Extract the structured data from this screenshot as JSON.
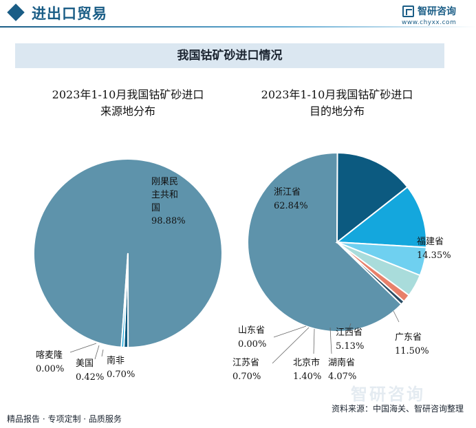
{
  "header": {
    "section_title": "进出口贸易",
    "brand_name": "智研咨询",
    "brand_url": "www.chyxx.com",
    "page_title": "我国钴矿砂进口情况"
  },
  "chart_data": [
    {
      "type": "pie",
      "title": [
        "2023年1-10月我国钴矿砂进口",
        "来源地分布"
      ],
      "unit": "%",
      "slices": [
        {
          "label": [
            "刚果民",
            "主共和",
            "国"
          ],
          "value": 98.88,
          "value_text": "98.88%",
          "color": "#5e93ab"
        },
        {
          "label": [
            "南非"
          ],
          "value": 0.7,
          "value_text": "0.70%",
          "color": "#0c5a80"
        },
        {
          "label": [
            "美国"
          ],
          "value": 0.42,
          "value_text": "0.42%",
          "color": "#14a7dd"
        },
        {
          "label": [
            "喀麦隆"
          ],
          "value": 0.0,
          "value_text": "0.00%",
          "color": "#6fd0f0"
        }
      ]
    },
    {
      "type": "pie",
      "title": [
        "2023年1-10月我国钴矿砂进口",
        "目的地分布"
      ],
      "unit": "%",
      "slices": [
        {
          "label": [
            "浙江省"
          ],
          "value": 62.84,
          "value_text": "62.84%",
          "color": "#5e93ab"
        },
        {
          "label": [
            "福建省"
          ],
          "value": 14.35,
          "value_text": "14.35%",
          "color": "#0c5a80"
        },
        {
          "label": [
            "广东省"
          ],
          "value": 11.5,
          "value_text": "11.50%",
          "color": "#14a7dd"
        },
        {
          "label": [
            "江西省"
          ],
          "value": 5.13,
          "value_text": "5.13%",
          "color": "#6fd0f0"
        },
        {
          "label": [
            "湖南省"
          ],
          "value": 4.07,
          "value_text": "4.07%",
          "color": "#a9dcdb"
        },
        {
          "label": [
            "北京市"
          ],
          "value": 1.4,
          "value_text": "1.40%",
          "color": "#e8806a"
        },
        {
          "label": [
            "江苏省"
          ],
          "value": 0.7,
          "value_text": "0.70%",
          "color": "#2b4e66"
        },
        {
          "label": [
            "山东省"
          ],
          "value": 0.0,
          "value_text": "0.00%",
          "color": "#8fb9d0"
        }
      ]
    }
  ],
  "footer": {
    "left": "精品报告 · 专项定制 · 品质服务",
    "source": "资料来源：中国海关、智研咨询整理"
  },
  "colors": {
    "brand": "#1a5d86",
    "banner_bg": "#dbe7f1"
  }
}
